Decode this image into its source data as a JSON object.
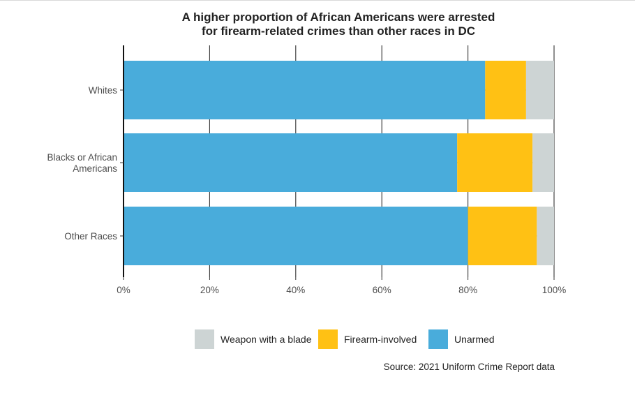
{
  "chart_data": {
    "type": "bar",
    "orientation": "horizontal",
    "stacked": true,
    "title_lines": [
      "A higher proportion of African Americans were arrested",
      "for firearm-related crimes than other races in DC"
    ],
    "categories": [
      {
        "label_lines": [
          "Whites"
        ]
      },
      {
        "label_lines": [
          "Blacks or African",
          "Americans"
        ]
      },
      {
        "label_lines": [
          "Other Races"
        ]
      }
    ],
    "series": [
      {
        "name": "Unarmed",
        "color": "#49ACDB",
        "values": [
          0.84,
          0.775,
          0.8
        ]
      },
      {
        "name": "Firearm-involved",
        "color": "#FFC114",
        "values": [
          0.095,
          0.175,
          0.16
        ]
      },
      {
        "name": "Weapon with a blade",
        "color": "#CDD4D4",
        "values": [
          0.065,
          0.05,
          0.04
        ]
      }
    ],
    "xlim": [
      0,
      1
    ],
    "x_ticks": [
      "0%",
      "20%",
      "40%",
      "60%",
      "80%",
      "100%"
    ],
    "legend_position": "bottom",
    "legend_order": [
      "Weapon with a blade",
      "Firearm-involved",
      "Unarmed"
    ],
    "caption": "Source: 2021 Uniform Crime Report data"
  }
}
